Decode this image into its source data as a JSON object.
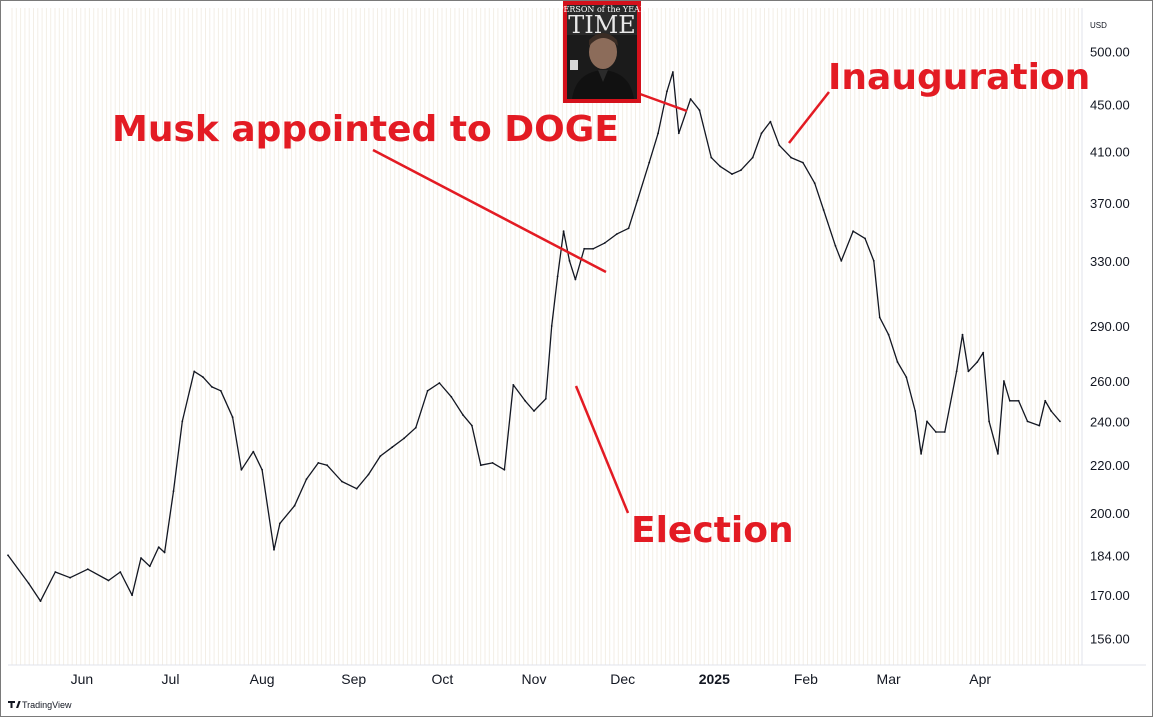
{
  "chart_data": {
    "type": "line",
    "currency": "USD",
    "yscale": "log",
    "ylim": [
      148,
      545
    ],
    "y_ticks": [
      "500.00",
      "450.00",
      "410.00",
      "370.00",
      "330.00",
      "290.00",
      "260.00",
      "240.00",
      "220.00",
      "200.00",
      "184.00",
      "170.00",
      "156.00"
    ],
    "x_labels": [
      {
        "label": "Jun",
        "date": "2024-06-01",
        "bold": false
      },
      {
        "label": "Jul",
        "date": "2024-07-01",
        "bold": false
      },
      {
        "label": "Aug",
        "date": "2024-08-01",
        "bold": false
      },
      {
        "label": "Sep",
        "date": "2024-09-01",
        "bold": false
      },
      {
        "label": "Oct",
        "date": "2024-10-01",
        "bold": false
      },
      {
        "label": "Nov",
        "date": "2024-11-01",
        "bold": false
      },
      {
        "label": "Dec",
        "date": "2024-12-01",
        "bold": false
      },
      {
        "label": "2025",
        "date": "2025-01-01",
        "bold": true
      },
      {
        "label": "Feb",
        "date": "2025-02-01",
        "bold": false
      },
      {
        "label": "Mar",
        "date": "2025-03-01",
        "bold": false
      },
      {
        "label": "Apr",
        "date": "2025-04-01",
        "bold": false
      }
    ],
    "x_range": [
      "2024-05-07",
      "2025-04-28"
    ],
    "series": [
      {
        "color": "#131722",
        "points": [
          [
            "2024-05-07",
            184
          ],
          [
            "2024-05-14",
            174
          ],
          [
            "2024-05-18",
            168
          ],
          [
            "2024-05-23",
            178
          ],
          [
            "2024-05-28",
            176
          ],
          [
            "2024-06-03",
            179
          ],
          [
            "2024-06-10",
            175
          ],
          [
            "2024-06-14",
            178
          ],
          [
            "2024-06-18",
            170
          ],
          [
            "2024-06-21",
            183
          ],
          [
            "2024-06-24",
            180
          ],
          [
            "2024-06-27",
            187
          ],
          [
            "2024-06-29",
            185
          ],
          [
            "2024-07-02",
            209
          ],
          [
            "2024-07-05",
            240
          ],
          [
            "2024-07-09",
            265
          ],
          [
            "2024-07-12",
            262
          ],
          [
            "2024-07-15",
            257
          ],
          [
            "2024-07-18",
            255
          ],
          [
            "2024-07-22",
            242
          ],
          [
            "2024-07-25",
            218
          ],
          [
            "2024-07-29",
            226
          ],
          [
            "2024-08-01",
            218
          ],
          [
            "2024-08-05",
            186
          ],
          [
            "2024-08-07",
            196
          ],
          [
            "2024-08-12",
            203
          ],
          [
            "2024-08-16",
            214
          ],
          [
            "2024-08-20",
            221
          ],
          [
            "2024-08-23",
            220
          ],
          [
            "2024-08-28",
            213
          ],
          [
            "2024-09-02",
            210
          ],
          [
            "2024-09-06",
            216
          ],
          [
            "2024-09-10",
            224
          ],
          [
            "2024-09-14",
            228
          ],
          [
            "2024-09-18",
            232
          ],
          [
            "2024-09-22",
            237
          ],
          [
            "2024-09-26",
            255
          ],
          [
            "2024-09-30",
            259
          ],
          [
            "2024-10-04",
            252
          ],
          [
            "2024-10-08",
            243
          ],
          [
            "2024-10-11",
            238
          ],
          [
            "2024-10-14",
            220
          ],
          [
            "2024-10-18",
            221
          ],
          [
            "2024-10-22",
            218
          ],
          [
            "2024-10-25",
            258
          ],
          [
            "2024-10-29",
            250
          ],
          [
            "2024-11-01",
            245
          ],
          [
            "2024-11-05",
            251
          ],
          [
            "2024-11-07",
            290
          ],
          [
            "2024-11-09",
            320
          ],
          [
            "2024-11-11",
            350
          ],
          [
            "2024-11-13",
            330
          ],
          [
            "2024-11-15",
            318
          ],
          [
            "2024-11-18",
            338
          ],
          [
            "2024-11-21",
            338
          ],
          [
            "2024-11-25",
            342
          ],
          [
            "2024-11-29",
            348
          ],
          [
            "2024-12-03",
            352
          ],
          [
            "2024-12-06",
            372
          ],
          [
            "2024-12-10",
            401
          ],
          [
            "2024-12-13",
            425
          ],
          [
            "2024-12-16",
            462
          ],
          [
            "2024-12-18",
            480
          ],
          [
            "2024-12-20",
            425
          ],
          [
            "2024-12-24",
            455
          ],
          [
            "2024-12-27",
            445
          ],
          [
            "2024-12-31",
            405
          ],
          [
            "2025-01-03",
            398
          ],
          [
            "2025-01-07",
            392
          ],
          [
            "2025-01-10",
            395
          ],
          [
            "2025-01-14",
            405
          ],
          [
            "2025-01-17",
            425
          ],
          [
            "2025-01-20",
            435
          ],
          [
            "2025-01-23",
            415
          ],
          [
            "2025-01-27",
            405
          ],
          [
            "2025-01-31",
            401
          ],
          [
            "2025-02-04",
            385
          ],
          [
            "2025-02-07",
            365
          ],
          [
            "2025-02-11",
            340
          ],
          [
            "2025-02-13",
            330
          ],
          [
            "2025-02-17",
            350
          ],
          [
            "2025-02-21",
            345
          ],
          [
            "2025-02-24",
            330
          ],
          [
            "2025-02-26",
            295
          ],
          [
            "2025-03-01",
            285
          ],
          [
            "2025-03-04",
            270
          ],
          [
            "2025-03-07",
            262
          ],
          [
            "2025-03-10",
            245
          ],
          [
            "2025-03-12",
            225
          ],
          [
            "2025-03-14",
            240
          ],
          [
            "2025-03-17",
            235
          ],
          [
            "2025-03-20",
            235
          ],
          [
            "2025-03-24",
            265
          ],
          [
            "2025-03-26",
            285
          ],
          [
            "2025-03-28",
            265
          ],
          [
            "2025-03-31",
            270
          ],
          [
            "2025-04-02",
            275
          ],
          [
            "2025-04-04",
            240
          ],
          [
            "2025-04-07",
            225
          ],
          [
            "2025-04-09",
            260
          ],
          [
            "2025-04-11",
            250
          ],
          [
            "2025-04-14",
            250
          ],
          [
            "2025-04-17",
            240
          ],
          [
            "2025-04-21",
            238
          ],
          [
            "2025-04-23",
            250
          ],
          [
            "2025-04-25",
            245
          ],
          [
            "2025-04-28",
            240
          ]
        ]
      }
    ],
    "annotations": [
      {
        "text": "Musk appointed to DOGE"
      },
      {
        "text": "Inauguration"
      },
      {
        "text": "Election"
      }
    ],
    "inset_image": {
      "description": "magazine cover",
      "lines": [
        "PERSON of the YEAR",
        "TIME"
      ]
    },
    "branding": "TradingView",
    "grid": true
  }
}
